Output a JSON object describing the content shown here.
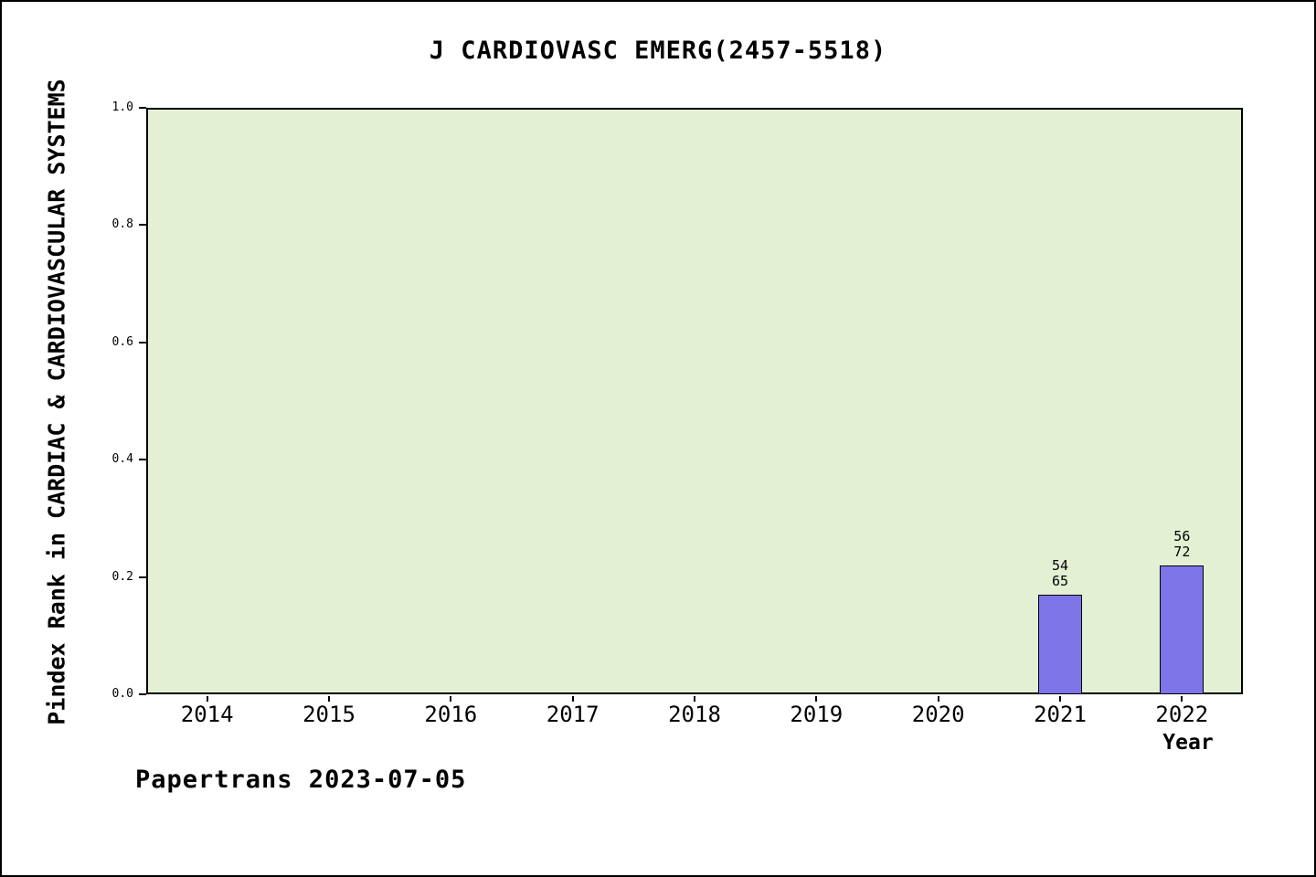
{
  "footer": "Papertrans 2023-07-05",
  "chart_data": {
    "type": "bar",
    "title": "J CARDIOVASC EMERG(2457-5518)",
    "xlabel": "Year",
    "ylabel": "Pindex Rank in CARDIAC & CARDIOVASCULAR SYSTEMS",
    "categories": [
      "2014",
      "2015",
      "2016",
      "2017",
      "2018",
      "2019",
      "2020",
      "2021",
      "2022"
    ],
    "values": [
      null,
      null,
      null,
      null,
      null,
      null,
      null,
      0.17,
      0.22
    ],
    "bar_labels": [
      null,
      null,
      null,
      null,
      null,
      null,
      null,
      "54\n65",
      "56\n72"
    ],
    "ylim": [
      0.0,
      1.0
    ],
    "yticks": [
      0.0,
      0.2,
      0.4,
      0.6,
      0.8,
      1.0
    ],
    "grid": false,
    "legend": "none",
    "colors": {
      "bar_fill": "#7d75e8",
      "bar_edge": "#000000",
      "plot_background": "#e3f0d3"
    }
  }
}
